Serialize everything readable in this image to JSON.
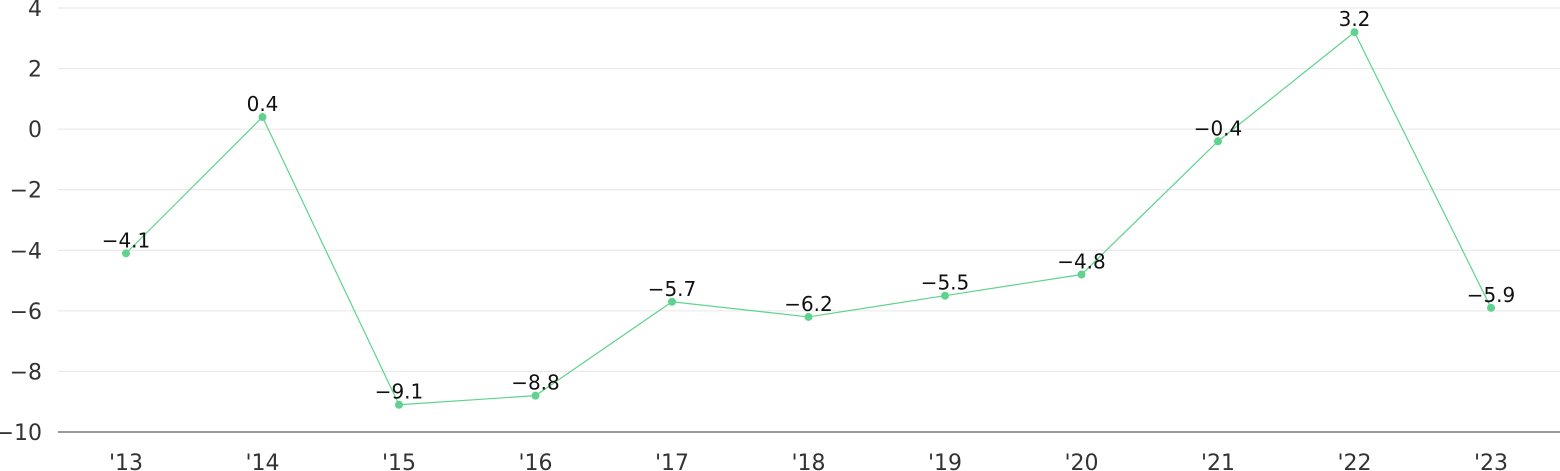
{
  "chart_data": {
    "type": "line",
    "title": "",
    "xlabel": "",
    "ylabel": "",
    "categories": [
      "'13",
      "'14",
      "'15",
      "'16",
      "'17",
      "'18",
      "'19",
      "'20",
      "'21",
      "'22",
      "'23"
    ],
    "series": [
      {
        "values": [
          -4.1,
          0.4,
          -9.1,
          -8.8,
          -5.7,
          -6.2,
          -5.5,
          -4.8,
          -0.4,
          3.2,
          -5.9
        ],
        "color": "#5fd38d"
      }
    ],
    "data_labels": [
      "−4.1",
      "0.4",
      "−9.1",
      "−8.8",
      "−5.7",
      "−6.2",
      "−5.5",
      "−4.8",
      "−0.4",
      "3.2",
      "−5.9"
    ],
    "y_ticks": [
      4,
      2,
      0,
      -2,
      -4,
      -6,
      -8,
      -10
    ],
    "y_tick_labels": [
      "4",
      "2",
      "0",
      "−2",
      "−4",
      "−6",
      "−8",
      "−10"
    ],
    "ylim": [
      -10,
      4
    ],
    "grid": true,
    "legend": "none"
  }
}
